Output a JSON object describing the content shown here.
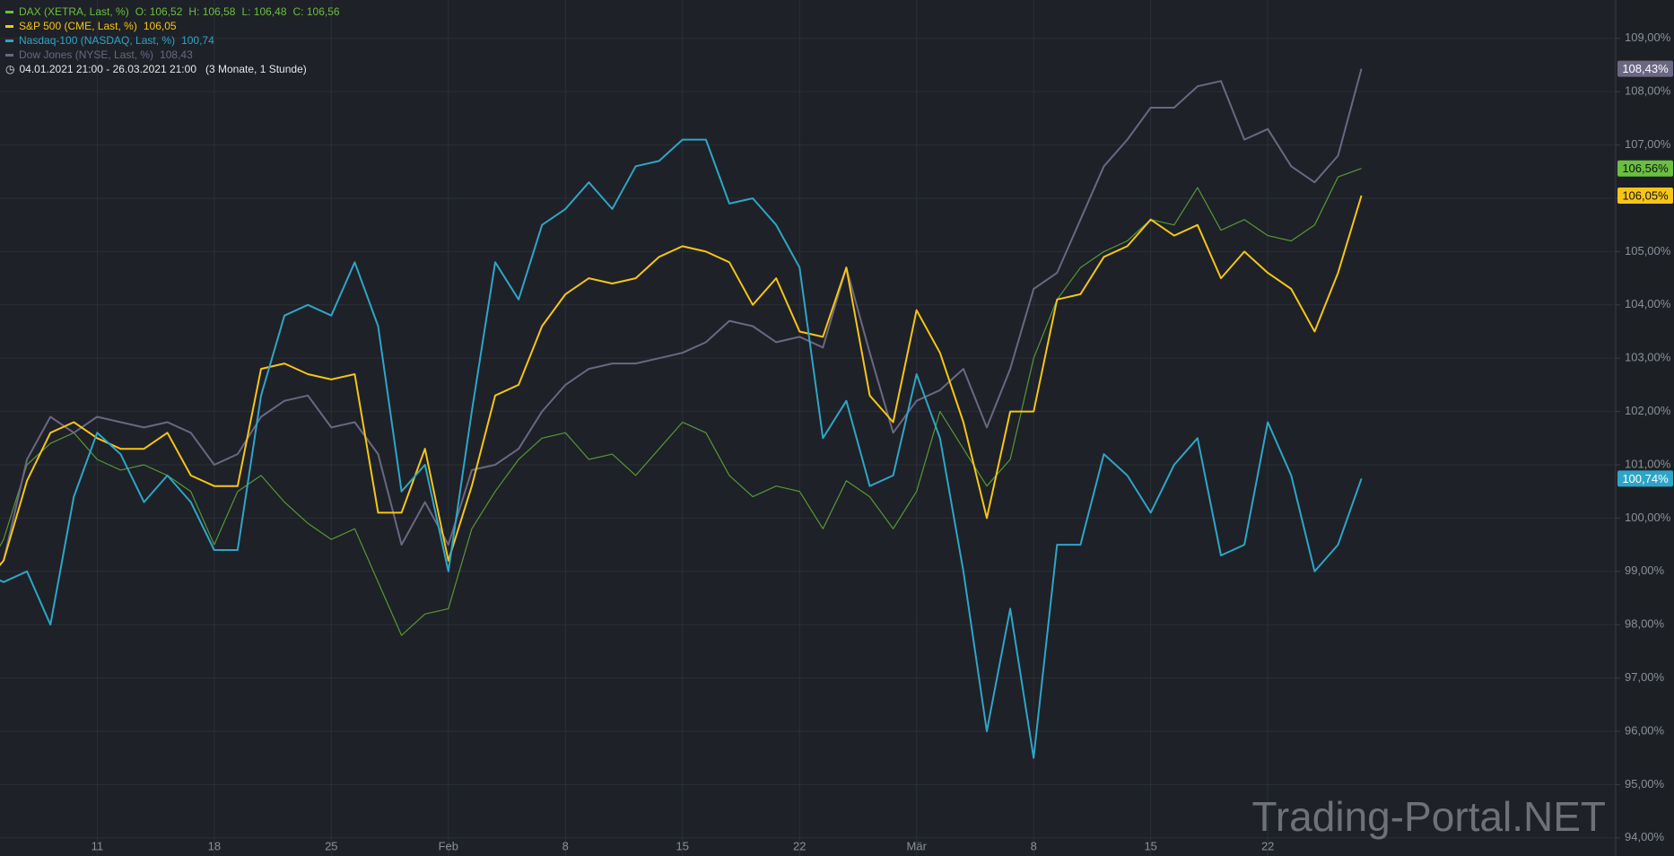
{
  "chart_data": {
    "type": "line",
    "legend": [
      {
        "parts": [
          "DAX (XETRA, Last, %)",
          "O: 106,52",
          "H: 106,58",
          "L: 106,48",
          "C: 106,56"
        ]
      },
      {
        "parts": [
          "S&P 500 (CME, Last, %)",
          "106,05"
        ]
      },
      {
        "parts": [
          "Nasdaq-100 (NASDAQ, Last, %)",
          "100,74"
        ]
      },
      {
        "parts": [
          "Dow Jones (NYSE, Last, %)",
          "108,43"
        ]
      }
    ],
    "range_text": "04.01.2021 21:00 - 26.03.2021 21:00",
    "range_note": "(3 Monate, 1 Stunde)",
    "watermark": "Trading-Portal.NET",
    "categories": [
      null,
      null,
      null,
      null,
      null,
      "11",
      null,
      null,
      null,
      null,
      "18",
      null,
      null,
      null,
      null,
      "25",
      null,
      null,
      null,
      null,
      "Feb",
      null,
      null,
      null,
      null,
      "8",
      null,
      null,
      null,
      null,
      "15",
      null,
      null,
      null,
      null,
      "22",
      null,
      null,
      null,
      null,
      "Mär",
      null,
      null,
      null,
      null,
      "8",
      null,
      null,
      null,
      null,
      "15",
      null,
      null,
      null,
      null,
      "22",
      null,
      null,
      null,
      null
    ],
    "ylim": [
      93.66,
      109.72
    ],
    "yticks": [
      {
        "value": 94,
        "label": "94,00%"
      },
      {
        "value": 95,
        "label": "95,00%"
      },
      {
        "value": 96,
        "label": "96,00%"
      },
      {
        "value": 97,
        "label": "97,00%"
      },
      {
        "value": 98,
        "label": "98,00%"
      },
      {
        "value": 99,
        "label": "99,00%"
      },
      {
        "value": 100,
        "label": "100,00%"
      },
      {
        "value": 101,
        "label": "101,00%"
      },
      {
        "value": 102,
        "label": "102,00%"
      },
      {
        "value": 103,
        "label": "103,00%"
      },
      {
        "value": 104,
        "label": "104,00%"
      },
      {
        "value": 105,
        "label": "105,00%"
      },
      {
        "value": 106,
        "label": "106,00%"
      },
      {
        "value": 107,
        "label": "107,00%"
      },
      {
        "value": 108,
        "label": "108,00%"
      },
      {
        "value": 109,
        "label": "109,00%"
      }
    ],
    "grid": true,
    "series": [
      {
        "name": "DAX",
        "color": "#6abf40",
        "last_label": "106,56%",
        "values": [
          98.8,
          99.6,
          101.0,
          101.4,
          101.6,
          101.1,
          100.9,
          101.0,
          100.8,
          100.5,
          99.5,
          100.5,
          100.8,
          100.3,
          99.9,
          99.6,
          99.8,
          98.8,
          97.8,
          98.2,
          98.3,
          99.8,
          100.5,
          101.1,
          101.5,
          101.6,
          101.1,
          101.2,
          100.8,
          101.3,
          101.8,
          101.6,
          100.8,
          100.4,
          100.6,
          100.5,
          99.8,
          100.7,
          100.4,
          99.8,
          100.5,
          102.0,
          101.3,
          100.6,
          101.1,
          103.0,
          104.1,
          104.7,
          105.0,
          105.2,
          105.6,
          105.5,
          106.2,
          105.4,
          105.6,
          105.3,
          105.2,
          105.5,
          106.4,
          106.56
        ]
      },
      {
        "name": "Dow Jones",
        "color": "#6b6783",
        "last_label": "108,43%",
        "values": [
          98.7,
          99.2,
          101.1,
          101.9,
          101.6,
          101.9,
          101.8,
          101.7,
          101.8,
          101.6,
          101.0,
          101.2,
          101.9,
          102.2,
          102.3,
          101.7,
          101.8,
          101.2,
          99.5,
          100.3,
          99.5,
          100.9,
          101.0,
          101.3,
          102.0,
          102.5,
          102.8,
          102.9,
          102.9,
          103.0,
          103.1,
          103.3,
          103.7,
          103.6,
          103.3,
          103.4,
          103.2,
          104.7,
          103.1,
          101.6,
          102.2,
          102.4,
          102.8,
          101.7,
          102.8,
          104.3,
          104.6,
          105.6,
          106.6,
          107.1,
          107.7,
          107.7,
          108.1,
          108.2,
          107.1,
          107.3,
          106.6,
          106.3,
          106.8,
          108.43
        ]
      },
      {
        "name": "S&P 500",
        "color": "#f5c518",
        "last_label": "106,05%",
        "values": [
          98.7,
          99.2,
          100.7,
          101.6,
          101.8,
          101.5,
          101.3,
          101.3,
          101.6,
          100.8,
          100.6,
          100.6,
          102.8,
          102.9,
          102.7,
          102.6,
          102.7,
          100.1,
          100.1,
          101.3,
          99.2,
          100.6,
          102.3,
          102.5,
          103.6,
          104.2,
          104.5,
          104.4,
          104.5,
          104.9,
          105.1,
          105.0,
          104.8,
          104.0,
          104.5,
          103.5,
          103.4,
          104.7,
          102.3,
          101.8,
          103.9,
          103.1,
          101.8,
          100.0,
          102.0,
          102.0,
          104.1,
          104.2,
          104.9,
          105.1,
          105.6,
          105.3,
          105.5,
          104.5,
          105.0,
          104.6,
          104.3,
          103.5,
          104.6,
          106.05
        ]
      },
      {
        "name": "Nasdaq-100",
        "color": "#2ea5c8",
        "last_label": "100,74%",
        "values": [
          99.0,
          98.8,
          99.0,
          98.0,
          100.4,
          101.6,
          101.2,
          100.3,
          100.8,
          100.3,
          99.4,
          99.4,
          102.3,
          103.8,
          104.0,
          103.8,
          104.8,
          103.6,
          100.5,
          101.0,
          99.0,
          102.0,
          104.8,
          104.1,
          105.5,
          105.8,
          106.3,
          105.8,
          106.6,
          106.7,
          107.1,
          107.1,
          105.9,
          106.0,
          105.5,
          104.7,
          101.5,
          102.2,
          100.6,
          100.8,
          102.7,
          101.5,
          99.0,
          96.0,
          98.3,
          95.5,
          99.5,
          99.5,
          101.2,
          100.8,
          100.1,
          101.0,
          101.5,
          99.3,
          99.5,
          101.8,
          100.8,
          99.0,
          99.5,
          100.74
        ]
      }
    ]
  }
}
